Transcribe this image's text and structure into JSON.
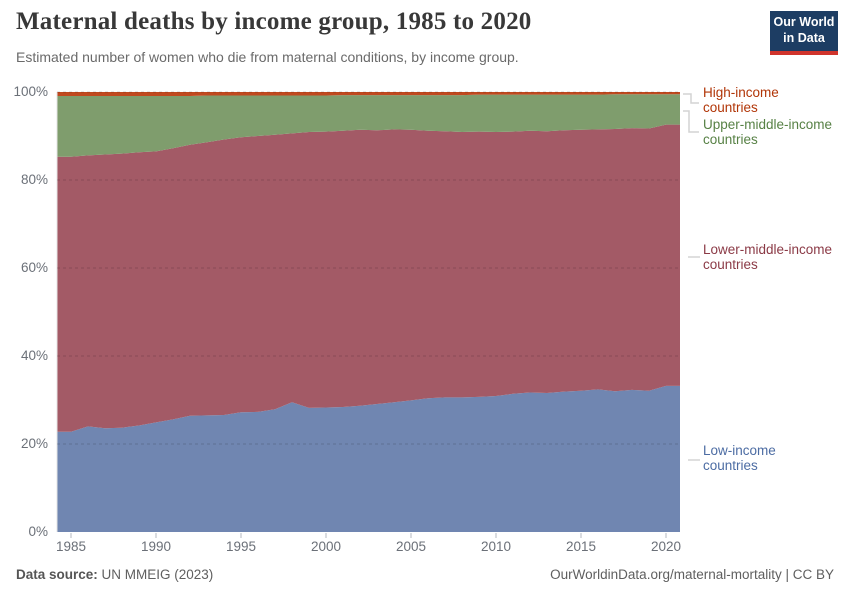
{
  "header": {
    "title": "Maternal deaths by income group, 1985 to 2020",
    "subtitle": "Estimated number of women who die from maternal conditions, by income group.",
    "logo": {
      "line1": "Our World",
      "line2": "in Data"
    }
  },
  "footer": {
    "source_label": "Data source:",
    "source_value": " UN MMEIG (2023)",
    "credit": "OurWorldinData.org/maternal-mortality | CC BY"
  },
  "chart_data": {
    "type": "area",
    "stacked": true,
    "unit": "% of maternal deaths",
    "title": "Maternal deaths by income group, 1985 to 2020",
    "xlabel": "",
    "ylabel": "",
    "ylim": [
      0,
      100
    ],
    "xlim": [
      1985,
      2020
    ],
    "gridlines": "dashed-horizontal",
    "legend_position": "right",
    "x": [
      1985,
      1986,
      1987,
      1988,
      1989,
      1990,
      1991,
      1992,
      1993,
      1994,
      1995,
      1996,
      1997,
      1998,
      1999,
      2000,
      2001,
      2002,
      2003,
      2004,
      2005,
      2006,
      2007,
      2008,
      2009,
      2010,
      2011,
      2012,
      2013,
      2014,
      2015,
      2016,
      2017,
      2018,
      2019,
      2020
    ],
    "series": [
      {
        "id": "low-income",
        "name": "Low-income countries",
        "legend_lines": [
          "Low-income",
          "countries"
        ],
        "color": "#7086B1",
        "label_color": "#4C6CA3",
        "values": [
          22.8,
          24.0,
          23.6,
          23.7,
          24.2,
          24.9,
          25.6,
          26.4,
          26.5,
          26.6,
          27.2,
          27.3,
          27.9,
          29.5,
          28.2,
          28.3,
          28.4,
          28.7,
          29.1,
          29.5,
          29.9,
          30.4,
          30.6,
          30.6,
          30.7,
          30.9,
          31.4,
          31.7,
          31.6,
          31.9,
          32.1,
          32.4,
          32.0,
          32.3,
          32.1,
          33.2
        ]
      },
      {
        "id": "lower-middle-income",
        "name": "Lower-middle-income countries",
        "legend_lines": [
          "Lower-middle-income",
          "countries"
        ],
        "color": "#A35A66",
        "label_color": "#8B3A46",
        "values": [
          62.5,
          61.6,
          62.2,
          62.3,
          62.1,
          61.6,
          61.6,
          61.6,
          62.1,
          62.6,
          62.5,
          62.7,
          62.4,
          61.1,
          62.7,
          62.7,
          62.8,
          62.7,
          62.2,
          62.0,
          61.5,
          60.8,
          60.5,
          60.3,
          60.3,
          60.0,
          59.6,
          59.5,
          59.5,
          59.4,
          59.3,
          59.1,
          59.6,
          59.5,
          59.6,
          59.4
        ]
      },
      {
        "id": "upper-middle-income",
        "name": "Upper-middle-income countries",
        "legend_lines": [
          "Upper-middle-income",
          "countries"
        ],
        "color": "#7F9D6D",
        "label_color": "#578145",
        "values": [
          13.8,
          13.5,
          13.3,
          13.1,
          12.8,
          12.6,
          11.9,
          11.1,
          10.6,
          10.0,
          9.5,
          9.2,
          8.9,
          8.6,
          8.3,
          8.2,
          8.1,
          7.9,
          8.0,
          7.8,
          7.9,
          8.1,
          8.2,
          8.4,
          8.4,
          8.5,
          8.4,
          8.2,
          8.3,
          8.1,
          8.0,
          7.9,
          7.9,
          7.7,
          7.8,
          6.9
        ]
      },
      {
        "id": "high-income",
        "name": "High-income countries",
        "legend_lines": [
          "High-income",
          "countries"
        ],
        "color": "#C0491F",
        "label_color": "#B13507",
        "values": [
          0.9,
          0.9,
          0.9,
          0.9,
          0.9,
          0.9,
          0.9,
          0.9,
          0.8,
          0.8,
          0.8,
          0.8,
          0.8,
          0.8,
          0.8,
          0.8,
          0.7,
          0.7,
          0.7,
          0.7,
          0.7,
          0.7,
          0.7,
          0.7,
          0.6,
          0.6,
          0.6,
          0.6,
          0.6,
          0.6,
          0.6,
          0.6,
          0.5,
          0.5,
          0.5,
          0.5
        ]
      }
    ],
    "yticks": [
      {
        "v": 0,
        "label": "0%"
      },
      {
        "v": 20,
        "label": "20%"
      },
      {
        "v": 40,
        "label": "40%"
      },
      {
        "v": 60,
        "label": "60%"
      },
      {
        "v": 80,
        "label": "80%"
      },
      {
        "v": 100,
        "label": "100%"
      }
    ],
    "xticks": [
      {
        "v": 1985,
        "label": "1985"
      },
      {
        "v": 1990,
        "label": "1990"
      },
      {
        "v": 1995,
        "label": "1995"
      },
      {
        "v": 2000,
        "label": "2000"
      },
      {
        "v": 2005,
        "label": "2005"
      },
      {
        "v": 2010,
        "label": "2010"
      },
      {
        "v": 2015,
        "label": "2015"
      },
      {
        "v": 2020,
        "label": "2020"
      }
    ]
  }
}
